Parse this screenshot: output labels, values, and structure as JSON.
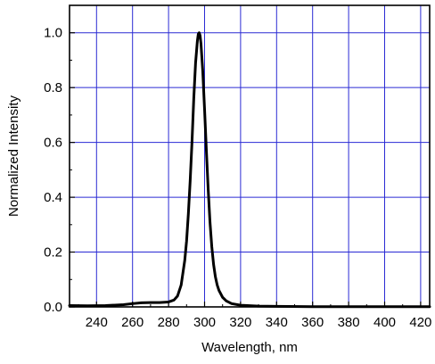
{
  "chart_data": {
    "type": "line",
    "title": "",
    "xlabel": "Wavelength, nm",
    "ylabel": "Normalized Intensity",
    "xlim": [
      225,
      425
    ],
    "ylim": [
      0.0,
      1.1
    ],
    "x_ticks": [
      240,
      260,
      280,
      300,
      320,
      340,
      360,
      380,
      400,
      420
    ],
    "x_tick_labels": [
      "240",
      "260",
      "280",
      "300",
      "320",
      "340",
      "360",
      "380",
      "400",
      "420"
    ],
    "y_ticks": [
      0.0,
      0.2,
      0.4,
      0.6,
      0.8,
      1.0
    ],
    "y_tick_labels": [
      "0.0",
      "0.2",
      "0.4",
      "0.6",
      "0.8",
      "1.0"
    ],
    "grid": true,
    "grid_color": "#2a2ad4",
    "line_color": "#000000",
    "legend": "none",
    "series": [
      {
        "x": [
          225,
          235,
          245,
          255,
          260,
          265,
          270,
          275,
          280,
          283,
          285,
          287,
          289,
          290,
          291,
          292,
          293,
          294,
          295,
          296,
          296.5,
          297,
          297.5,
          298,
          299,
          300,
          301,
          302,
          303,
          304,
          305,
          306,
          307,
          308,
          310,
          312,
          315,
          320,
          330,
          340,
          360,
          380,
          400,
          425
        ],
        "y": [
          0.005,
          0.004,
          0.005,
          0.008,
          0.012,
          0.015,
          0.016,
          0.016,
          0.018,
          0.025,
          0.04,
          0.08,
          0.17,
          0.24,
          0.34,
          0.46,
          0.6,
          0.76,
          0.89,
          0.97,
          0.995,
          1.0,
          0.99,
          0.96,
          0.86,
          0.72,
          0.57,
          0.43,
          0.31,
          0.22,
          0.155,
          0.11,
          0.08,
          0.06,
          0.035,
          0.022,
          0.012,
          0.006,
          0.003,
          0.002,
          0.001,
          0.001,
          0.001,
          0.001
        ]
      }
    ]
  }
}
